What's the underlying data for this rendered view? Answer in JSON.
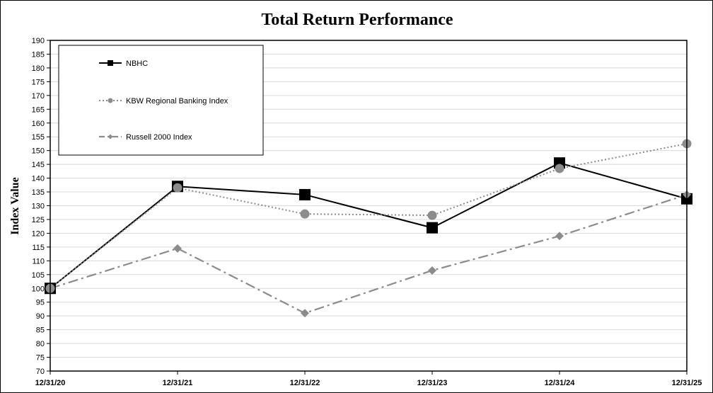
{
  "chart_data": {
    "type": "line",
    "title": "Total Return Performance",
    "xlabel": "",
    "ylabel": "Index Value",
    "categories": [
      "12/31/20",
      "12/31/21",
      "12/31/22",
      "12/31/23",
      "12/31/24",
      "12/31/25"
    ],
    "ylim": [
      70,
      190
    ],
    "ytick_step": 5,
    "grid": true,
    "legend_position": "top-left",
    "series": [
      {
        "name": "NBHC",
        "values": [
          100,
          137,
          134,
          122,
          145.5,
          132.5
        ],
        "color": "#000000",
        "line_style": "solid",
        "marker": "square"
      },
      {
        "name": "KBW Regional Banking Index",
        "values": [
          100,
          136.5,
          127,
          126.5,
          143.5,
          152.5
        ],
        "color": "#8c8c8c",
        "line_style": "dotted",
        "marker": "circle"
      },
      {
        "name": "Russell 2000 Index",
        "values": [
          100,
          114.5,
          91,
          106.5,
          119,
          134
        ],
        "color": "#8c8c8c",
        "line_style": "dash-dot",
        "marker": "diamond"
      }
    ]
  }
}
